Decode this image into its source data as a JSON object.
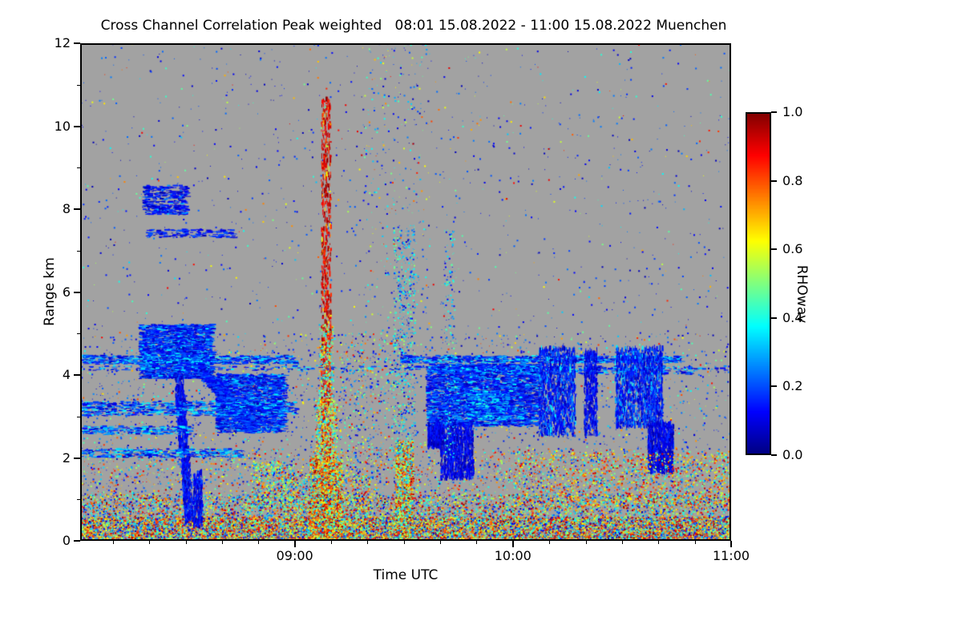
{
  "title": "Cross Channel Correlation Peak weighted   08:01 15.08.2022 - 11:00 15.08.2022 Muenchen",
  "axes": {
    "x": {
      "label": "Time UTC",
      "start": "08:01",
      "end": "11:00",
      "span_minutes": 179,
      "major_ticks": [
        {
          "min": 59,
          "label": "09:00"
        },
        {
          "min": 119,
          "label": "10:00"
        },
        {
          "min": 179,
          "label": "11:00"
        }
      ],
      "minor_start": 9,
      "minor_step": 10
    },
    "y": {
      "label": "Range km",
      "min": 0,
      "max": 12,
      "major_ticks": [
        {
          "km": 0,
          "label": "0"
        },
        {
          "km": 2,
          "label": "2"
        },
        {
          "km": 4,
          "label": "4"
        },
        {
          "km": 6,
          "label": "6"
        },
        {
          "km": 8,
          "label": "8"
        },
        {
          "km": 10,
          "label": "10"
        },
        {
          "km": 12,
          "label": "12"
        }
      ],
      "minor_ticks": [
        1,
        3,
        5,
        7,
        9,
        11
      ]
    }
  },
  "colorbar": {
    "label": "RHOwav",
    "min": 0,
    "max": 1,
    "colormap": "jet",
    "ticks": [
      {
        "value": 0.0,
        "label": "0.0"
      },
      {
        "value": 0.2,
        "label": "0.2"
      },
      {
        "value": 0.4,
        "label": "0.4"
      },
      {
        "value": 0.6,
        "label": "0.6"
      },
      {
        "value": 0.8,
        "label": "0.8"
      },
      {
        "value": 1.0,
        "label": "1.0"
      }
    ]
  },
  "chart_data": {
    "type": "heatmap",
    "title": "Cross Channel Correlation Peak weighted",
    "subtitle": "08:01 15.08.2022 - 11:00 15.08.2022 Muenchen",
    "xlabel": "Time UTC",
    "ylabel": "Range km",
    "x_range": [
      "08:01",
      "11:00"
    ],
    "x_span_minutes": 179,
    "ylim": [
      0,
      12
    ],
    "value_label": "RHOwav",
    "value_range": [
      0,
      1
    ],
    "colormap": "jet",
    "background_color": "#a2a2a2",
    "background_meaning": "masked / no-signal values rendered gray",
    "features": [
      {
        "name": "ground-clutter",
        "t": [
          0,
          179
        ],
        "r": [
          0,
          0.55
        ],
        "n": 15000,
        "shape": "dot",
        "values": [
          [
            0.55,
            0.55,
            1.0
          ],
          [
            0.25,
            0.3,
            0.55
          ],
          [
            0.2,
            0.05,
            0.3
          ]
        ]
      },
      {
        "name": "surface-band",
        "t": [
          0,
          179
        ],
        "r": [
          0.55,
          1.1
        ],
        "n": 5200,
        "shape": "dot",
        "values": [
          [
            0.5,
            0.5,
            1.0
          ],
          [
            0.25,
            0.3,
            0.5
          ],
          [
            0.25,
            0.05,
            0.3
          ]
        ]
      },
      {
        "name": "low-speckle",
        "t": [
          0,
          179
        ],
        "r": [
          1.1,
          2.2
        ],
        "n": 2600,
        "shape": "dot",
        "values": [
          [
            0.45,
            0.5,
            0.95
          ],
          [
            0.2,
            0.3,
            0.5
          ],
          [
            0.35,
            0.05,
            0.3
          ]
        ]
      },
      {
        "name": "mid-speckle",
        "t": [
          0,
          179
        ],
        "r": [
          2.2,
          5.0
        ],
        "n": 2300,
        "shape": "dot",
        "values": [
          [
            0.2,
            0.5,
            0.9
          ],
          [
            0.15,
            0.3,
            0.5
          ],
          [
            0.65,
            0.05,
            0.28
          ]
        ]
      },
      {
        "name": "high-speckle",
        "t": [
          0,
          179
        ],
        "r": [
          5,
          12
        ],
        "n": 1050,
        "shape": "dot",
        "values": [
          [
            0.1,
            0.5,
            0.9
          ],
          [
            0.12,
            0.3,
            0.5
          ],
          [
            0.78,
            0.05,
            0.25
          ]
        ]
      },
      {
        "name": "convective-column-0908",
        "t": [
          66.2,
          68.8
        ],
        "r": [
          0,
          10.6
        ],
        "n": 950,
        "shape": "v",
        "values": [
          [
            0.85,
            0.82,
            1.0
          ],
          [
            0.15,
            0.55,
            0.8
          ]
        ]
      },
      {
        "name": "column-flame-base",
        "t": [
          63,
          72
        ],
        "r": [
          0,
          2.0
        ],
        "n": 2600,
        "shape": "dot",
        "values": [
          [
            0.7,
            0.55,
            1.0
          ],
          [
            0.3,
            0.3,
            0.55
          ]
        ]
      },
      {
        "name": "column-flame-mid",
        "t": [
          64.5,
          70.5
        ],
        "r": [
          2.0,
          3.4
        ],
        "n": 700,
        "shape": "dot",
        "values": [
          [
            0.6,
            0.5,
            0.95
          ],
          [
            0.4,
            0.3,
            0.55
          ]
        ]
      },
      {
        "name": "column-flame-top",
        "t": [
          65.5,
          69.5
        ],
        "r": [
          3.4,
          5.2
        ],
        "n": 350,
        "shape": "dot",
        "values": [
          [
            0.5,
            0.45,
            0.9
          ],
          [
            0.5,
            0.28,
            0.5
          ]
        ]
      },
      {
        "name": "column-surroundings",
        "t": [
          55,
          80
        ],
        "r": [
          0,
          1.6
        ],
        "n": 1500,
        "shape": "dot",
        "values": [
          [
            0.55,
            0.5,
            0.95
          ],
          [
            0.25,
            0.3,
            0.5
          ],
          [
            0.2,
            0.08,
            0.3
          ]
        ]
      },
      {
        "name": "green-cluster-0850",
        "t": [
          47,
          59
        ],
        "r": [
          0.8,
          1.9
        ],
        "n": 600,
        "shape": "dot",
        "values": [
          [
            0.5,
            0.3,
            0.6
          ],
          [
            0.3,
            0.55,
            0.9
          ],
          [
            0.2,
            0.08,
            0.3
          ]
        ]
      },
      {
        "name": "column-0930",
        "t": [
          86.5,
          91.5
        ],
        "r": [
          0,
          2.4
        ],
        "n": 1500,
        "shape": "dot",
        "values": [
          [
            0.65,
            0.5,
            1.0
          ],
          [
            0.35,
            0.25,
            0.5
          ]
        ]
      },
      {
        "name": "column-0930-upper",
        "t": [
          86,
          92
        ],
        "r": [
          2.4,
          7.6
        ],
        "n": 600,
        "shape": "dot",
        "values": [
          [
            0.6,
            0.28,
            0.52
          ],
          [
            0.4,
            0.05,
            0.28
          ]
        ]
      },
      {
        "name": "high-green-speckle",
        "t": [
          78,
          96
        ],
        "r": [
          5,
          12
        ],
        "n": 260,
        "shape": "dot",
        "values": [
          [
            0.5,
            0.25,
            0.5
          ],
          [
            0.3,
            0.05,
            0.25
          ],
          [
            0.2,
            0.5,
            0.85
          ]
        ]
      },
      {
        "name": "post-column-speckle",
        "t": [
          71,
          89
        ],
        "r": [
          1.5,
          5
        ],
        "n": 520,
        "shape": "dot",
        "values": [
          [
            0.4,
            0.3,
            0.55
          ],
          [
            0.3,
            0.55,
            0.9
          ],
          [
            0.3,
            0.06,
            0.28
          ]
        ]
      },
      {
        "name": "cloud-0820",
        "t": [
          16,
          36
        ],
        "r": [
          3.9,
          5.2
        ],
        "n": 2800,
        "shape": "h",
        "values": [
          [
            0.75,
            0.04,
            0.22
          ],
          [
            0.25,
            0.2,
            0.38
          ]
        ]
      },
      {
        "name": "cloud-0840",
        "t": [
          37,
          56
        ],
        "r": [
          2.6,
          4.0
        ],
        "n": 2400,
        "shape": "h",
        "values": [
          [
            0.75,
            0.04,
            0.22
          ],
          [
            0.25,
            0.2,
            0.38
          ]
        ]
      },
      {
        "name": "fall-streak-0830",
        "line": [
          [
            27,
            3.8
          ],
          [
            30,
            0.4
          ]
        ],
        "w": 0.4,
        "tw": 2.5,
        "n": 900,
        "shape": "v",
        "values": [
          [
            1,
            0.04,
            0.2
          ]
        ]
      },
      {
        "name": "fall-streak-0833",
        "t": [
          31,
          33.5
        ],
        "r": [
          0.3,
          1.6
        ],
        "n": 300,
        "shape": "v",
        "values": [
          [
            1,
            0.04,
            0.2
          ]
        ]
      },
      {
        "name": "diag-streak-0835",
        "line": [
          [
            30,
            4.4
          ],
          [
            47,
            2.7
          ]
        ],
        "w": 0.3,
        "tw": 2,
        "n": 1100,
        "shape": "h",
        "values": [
          [
            1,
            0.05,
            0.25
          ]
        ]
      },
      {
        "name": "h-streak-4p3-left",
        "t": [
          0,
          59
        ],
        "r": [
          4.25,
          4.45
        ],
        "n": 700,
        "shape": "h",
        "values": [
          [
            0.6,
            0.05,
            0.22
          ],
          [
            0.4,
            0.22,
            0.4
          ]
        ]
      },
      {
        "name": "h-streak-3p2-left",
        "t": [
          0,
          59
        ],
        "r": [
          3.0,
          3.35
        ],
        "n": 800,
        "shape": "h",
        "values": [
          [
            0.6,
            0.05,
            0.22
          ],
          [
            0.4,
            0.22,
            0.4
          ]
        ]
      },
      {
        "name": "h-streak-2p1-left",
        "t": [
          0,
          44
        ],
        "r": [
          2.0,
          2.2
        ],
        "n": 350,
        "shape": "h",
        "values": [
          [
            0.7,
            0.05,
            0.25
          ],
          [
            0.3,
            0.25,
            0.4
          ]
        ]
      },
      {
        "name": "h-streak-2p65-left",
        "t": [
          0,
          30
        ],
        "r": [
          2.55,
          2.75
        ],
        "n": 250,
        "shape": "h",
        "values": [
          [
            0.5,
            0.05,
            0.25
          ],
          [
            0.5,
            0.25,
            0.42
          ]
        ]
      },
      {
        "name": "cloud-0945",
        "t": [
          95,
          126
        ],
        "r": [
          2.75,
          4.25
        ],
        "n": 4200,
        "shape": "h",
        "values": [
          [
            0.78,
            0.04,
            0.22
          ],
          [
            0.22,
            0.2,
            0.38
          ]
        ]
      },
      {
        "name": "cloud-0945-tails",
        "t": [
          99,
          108
        ],
        "r": [
          1.45,
          2.75
        ],
        "n": 950,
        "shape": "v",
        "values": [
          [
            1,
            0.03,
            0.18
          ]
        ]
      },
      {
        "name": "cloud-0945-tail2",
        "t": [
          95.5,
          99
        ],
        "r": [
          2.2,
          2.75
        ],
        "n": 350,
        "shape": "v",
        "values": [
          [
            1,
            0.03,
            0.18
          ]
        ]
      },
      {
        "name": "cyan-streak-0950",
        "t": [
          106,
          118
        ],
        "r": [
          2.9,
          3.6
        ],
        "n": 600,
        "shape": "h",
        "values": [
          [
            0.5,
            0.05,
            0.22
          ],
          [
            0.5,
            0.22,
            0.42
          ]
        ]
      },
      {
        "name": "h-streak-4p35-right",
        "t": [
          88,
          165
        ],
        "r": [
          4.28,
          4.45
        ],
        "n": 900,
        "shape": "h",
        "values": [
          [
            0.6,
            0.05,
            0.22
          ],
          [
            0.4,
            0.22,
            0.4
          ]
        ]
      },
      {
        "name": "h-streak-4p1-right",
        "t": [
          95,
          168
        ],
        "r": [
          4.0,
          4.2
        ],
        "n": 450,
        "shape": "h",
        "values": [
          [
            0.6,
            0.05,
            0.22
          ],
          [
            0.4,
            0.22,
            0.4
          ]
        ]
      },
      {
        "name": "h-streak-4p15-full",
        "t": [
          0,
          179
        ],
        "r": [
          4.1,
          4.2
        ],
        "n": 300,
        "shape": "h",
        "values": [
          [
            0.7,
            0.06,
            0.24
          ],
          [
            0.3,
            0.25,
            0.4
          ]
        ]
      },
      {
        "name": "patch-1010",
        "t": [
          126,
          136
        ],
        "r": [
          2.5,
          4.6
        ],
        "n": 1300,
        "shape": "v",
        "values": [
          [
            0.85,
            0.04,
            0.22
          ],
          [
            0.15,
            0.22,
            0.38
          ]
        ]
      },
      {
        "name": "streak-1020",
        "t": [
          138.5,
          142
        ],
        "r": [
          2.5,
          4.55
        ],
        "n": 450,
        "shape": "v",
        "values": [
          [
            1,
            0.04,
            0.2
          ]
        ]
      },
      {
        "name": "patch-1030",
        "t": [
          147,
          160
        ],
        "r": [
          2.7,
          4.6
        ],
        "n": 1600,
        "shape": "v",
        "values": [
          [
            0.85,
            0.04,
            0.22
          ],
          [
            0.15,
            0.22,
            0.38
          ]
        ]
      },
      {
        "name": "patch-1038-low",
        "t": [
          156,
          163
        ],
        "r": [
          1.6,
          2.8
        ],
        "n": 900,
        "shape": "v",
        "values": [
          [
            1,
            0.03,
            0.18
          ]
        ]
      },
      {
        "name": "cluster-8km-0825",
        "t": [
          17,
          29
        ],
        "r": [
          7.85,
          8.55
        ],
        "n": 420,
        "shape": "h",
        "values": [
          [
            0.9,
            0.04,
            0.2
          ],
          [
            0.1,
            0.2,
            0.35
          ]
        ]
      },
      {
        "name": "streak-7p4km",
        "t": [
          18,
          42
        ],
        "r": [
          7.3,
          7.5
        ],
        "n": 160,
        "shape": "h",
        "values": [
          [
            1,
            0.05,
            0.22
          ]
        ]
      },
      {
        "name": "warm-low-right",
        "t": [
          119,
          179
        ],
        "r": [
          0.8,
          2.1
        ],
        "n": 1600,
        "shape": "dot",
        "values": [
          [
            0.7,
            0.5,
            0.95
          ],
          [
            0.3,
            0.25,
            0.5
          ]
        ]
      },
      {
        "name": "warm-high-sparse",
        "t": [
          0,
          179
        ],
        "r": [
          5,
          12
        ],
        "n": 90,
        "shape": "dot",
        "values": [
          [
            0.7,
            0.5,
            0.95
          ],
          [
            0.3,
            0.3,
            0.5
          ]
        ]
      },
      {
        "name": "col-0942-green",
        "t": [
          100,
          103
        ],
        "r": [
          2,
          7.5
        ],
        "n": 220,
        "shape": "dot",
        "values": [
          [
            0.6,
            0.28,
            0.5
          ],
          [
            0.4,
            0.06,
            0.28
          ]
        ]
      }
    ]
  }
}
